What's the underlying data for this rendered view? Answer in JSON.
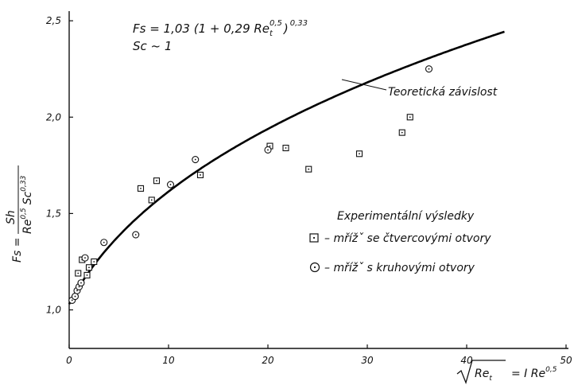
{
  "chart_data": {
    "type": "scatter",
    "xlim": [
      0,
      50
    ],
    "ylim": [
      0.8,
      2.55
    ],
    "x_ticks": [
      0,
      10,
      20,
      30,
      40,
      50
    ],
    "y_ticks": [
      1.0,
      1.5,
      2.0,
      2.5
    ],
    "x_tick_labels": [
      "0",
      "10",
      "20",
      "30",
      "40",
      "50"
    ],
    "y_tick_labels": [
      "1,0",
      "1,5",
      "2,0",
      "2,5"
    ],
    "grid": false,
    "xlabel": {
      "radicand": "Re",
      "radicand_sub": "t",
      "rhs": "= I Re",
      "rhs_sup": "0,5"
    },
    "ylabel": {
      "lhs": "Fs =",
      "numerator": "Sh",
      "den_a": "Re",
      "den_a_sup": "0,5",
      "den_b": "Sc",
      "den_b_sup": "0,33"
    },
    "formula": {
      "part1": "Fs = 1,03 (1 + 0,29 Re",
      "sub": "t",
      "sup1": "0,5",
      "part2": ")",
      "sup2": "0,33",
      "line2": "Sc ~ 1"
    },
    "curve_label": "Teoretická závislost",
    "legend": {
      "title": "Experimentální výsledky",
      "items": [
        {
          "marker": "square",
          "label": "– mřížˇ  se čtvercovými otvory"
        },
        {
          "marker": "circle",
          "label": "– mřížˇ  s kruhovými otvory"
        }
      ]
    },
    "series": [
      {
        "marker": "line",
        "function": "1.03*(1+0.29*x)^0.33",
        "x_range": [
          0,
          43.8
        ]
      },
      {
        "marker": "square",
        "points": [
          [
            0.9,
            1.19
          ],
          [
            1.3,
            1.26
          ],
          [
            1.8,
            1.18
          ],
          [
            2.0,
            1.22
          ],
          [
            2.5,
            1.25
          ],
          [
            7.2,
            1.63
          ],
          [
            8.3,
            1.57
          ],
          [
            8.8,
            1.67
          ],
          [
            13.2,
            1.7
          ],
          [
            20.2,
            1.85
          ],
          [
            21.8,
            1.84
          ],
          [
            24.1,
            1.73
          ],
          [
            29.2,
            1.81
          ],
          [
            33.5,
            1.92
          ],
          [
            34.3,
            2.0
          ]
        ]
      },
      {
        "marker": "circle",
        "points": [
          [
            0.3,
            1.05
          ],
          [
            0.6,
            1.07
          ],
          [
            0.8,
            1.1
          ],
          [
            1.0,
            1.12
          ],
          [
            1.2,
            1.14
          ],
          [
            1.6,
            1.27
          ],
          [
            3.5,
            1.35
          ],
          [
            6.7,
            1.39
          ],
          [
            10.2,
            1.65
          ],
          [
            12.7,
            1.78
          ],
          [
            20.0,
            1.83
          ],
          [
            36.2,
            2.25
          ]
        ]
      }
    ]
  }
}
